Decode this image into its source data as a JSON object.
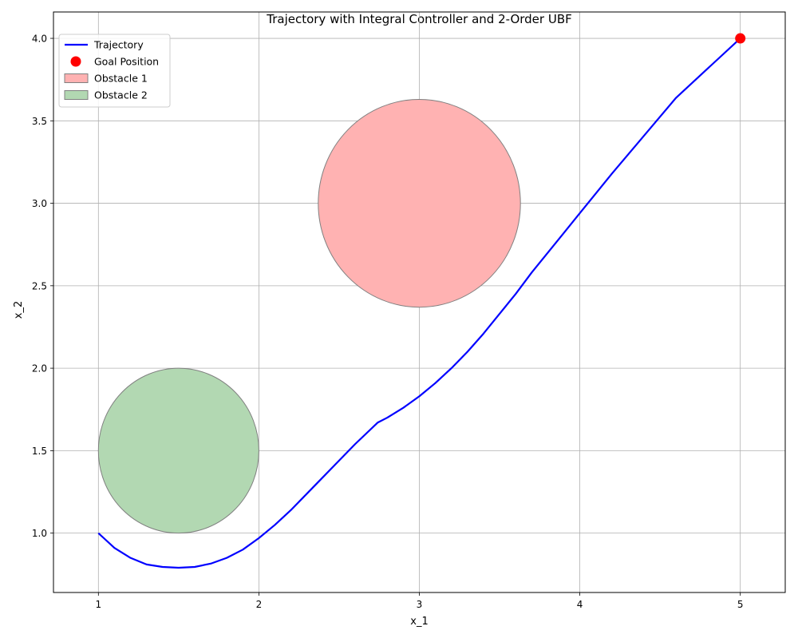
{
  "chart_data": {
    "type": "line",
    "title": "Trajectory with Integral Controller and 2-Order UBF",
    "xlabel": "x_1",
    "ylabel": "x_2",
    "xlim": [
      0.72,
      5.28
    ],
    "ylim": [
      0.64,
      4.16
    ],
    "xticks": [
      1,
      2,
      3,
      4,
      5
    ],
    "xtick_labels": [
      "1",
      "2",
      "3",
      "4",
      "5"
    ],
    "yticks": [
      1.0,
      1.5,
      2.0,
      2.5,
      3.0,
      3.5,
      4.0
    ],
    "ytick_labels": [
      "1.0",
      "1.5",
      "2.0",
      "2.5",
      "3.0",
      "3.5",
      "4.0"
    ],
    "grid": true,
    "legend_position": "top-left",
    "series": [
      {
        "name": "Trajectory",
        "kind": "line",
        "color": "#0000ff",
        "x": [
          1.0,
          1.1,
          1.2,
          1.3,
          1.4,
          1.5,
          1.6,
          1.7,
          1.8,
          1.9,
          2.0,
          2.1,
          2.2,
          2.3,
          2.4,
          2.5,
          2.6,
          2.74,
          2.8,
          2.9,
          3.0,
          3.1,
          3.2,
          3.3,
          3.4,
          3.5,
          3.6,
          3.7,
          3.8,
          3.9,
          4.0,
          4.2,
          4.4,
          4.6,
          4.8,
          5.0
        ],
        "y": [
          1.0,
          0.91,
          0.85,
          0.81,
          0.795,
          0.79,
          0.795,
          0.815,
          0.85,
          0.9,
          0.97,
          1.05,
          1.14,
          1.24,
          1.34,
          1.44,
          1.54,
          1.67,
          1.7,
          1.76,
          1.83,
          1.91,
          2.0,
          2.1,
          2.21,
          2.33,
          2.45,
          2.58,
          2.7,
          2.82,
          2.94,
          3.18,
          3.41,
          3.64,
          3.82,
          4.0
        ]
      },
      {
        "name": "Goal Position",
        "kind": "point",
        "color": "#ff0000",
        "x": [
          5.0
        ],
        "y": [
          4.0
        ]
      }
    ],
    "obstacles": [
      {
        "name": "Obstacle 1",
        "center": [
          3.0,
          3.0
        ],
        "radius": 0.63,
        "fill": "#ffb2b2",
        "edge": "#808080"
      },
      {
        "name": "Obstacle 2",
        "center": [
          1.5,
          1.5
        ],
        "radius": 0.5,
        "fill": "#b2d8b2",
        "edge": "#808080"
      }
    ]
  }
}
